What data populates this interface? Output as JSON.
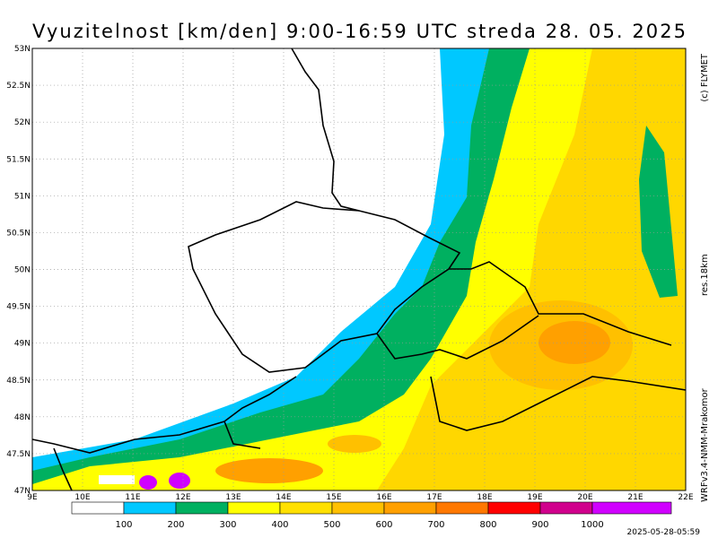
{
  "title": "Vyuzitelnost [km/den] 9:00-16:59 UTC  streda 28. 05. 2025",
  "credits": {
    "copyright": "(c) FLYMET",
    "resolution": "res.18km",
    "model": "WRFv3.4-NMM-Mrakomor"
  },
  "lat_labels": [
    "47N",
    "47.5N",
    "48N",
    "48.5N",
    "49N",
    "49.5N",
    "50N",
    "50.5N",
    "51N",
    "51.5N",
    "52N",
    "52.5N",
    "53N"
  ],
  "lon_labels": [
    "9E",
    "10E",
    "11E",
    "12E",
    "13E",
    "14E",
    "15E",
    "16E",
    "17E",
    "18E",
    "19E",
    "20E",
    "21E",
    "22E"
  ],
  "legend": {
    "labels": [
      100,
      200,
      300,
      400,
      500,
      600,
      700,
      800,
      900,
      1000
    ],
    "colors": [
      "#ffffff",
      "#00c8ff",
      "#00b060",
      "#ffff00",
      "#ffe000",
      "#ffc000",
      "#ffa000",
      "#ff7800",
      "#ff0000",
      "#d0008c",
      "#d000ff"
    ]
  },
  "timestamp": "2025-05-28-05:59"
}
